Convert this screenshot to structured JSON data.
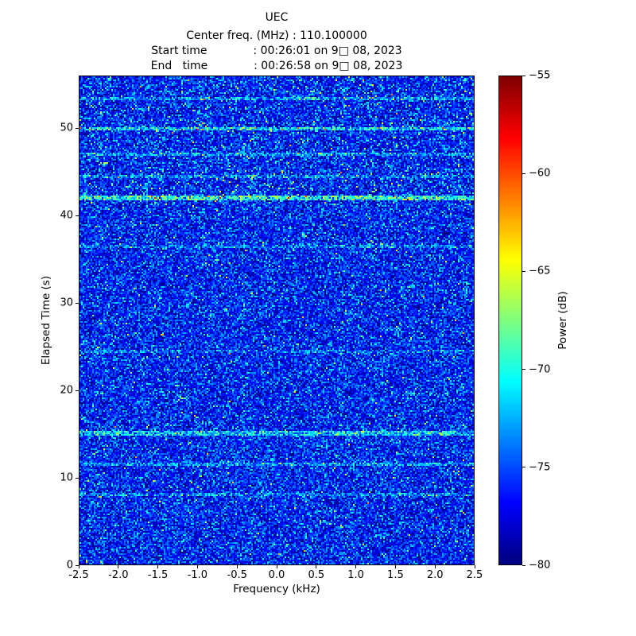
{
  "chart_data": {
    "type": "heatmap",
    "title": "UEC",
    "subtitle_lines": [
      "Center freq. (MHz) : 110.100000",
      "Start time             : 00:26:01 on 9□ 08, 2023",
      "End   time             : 00:26:58 on 9□ 08, 2023"
    ],
    "xlabel": "Frequency (kHz)",
    "ylabel": "Elapsed Time (s)",
    "xlim": [
      -2.5,
      2.5
    ],
    "ylim": [
      0,
      56
    ],
    "xticks": [
      -2.5,
      -2.0,
      -1.5,
      -1.0,
      -0.5,
      0.0,
      0.5,
      1.0,
      1.5,
      2.0,
      2.5
    ],
    "xtick_labels": [
      "-2.5",
      "-2.0",
      "-1.5",
      "-1.0",
      "-0.5",
      "0.0",
      "0.5",
      "1.0",
      "1.5",
      "2.0",
      "2.5"
    ],
    "yticks": [
      0,
      10,
      20,
      30,
      40,
      50
    ],
    "ytick_labels": [
      "0",
      "10",
      "20",
      "30",
      "40",
      "50"
    ],
    "grid": false,
    "colorbar": {
      "label": "Power (dB)",
      "colormap": "jet",
      "min": -80,
      "max": -55,
      "ticks": [
        -55,
        -60,
        -65,
        -70,
        -75,
        -80
      ],
      "tick_labels": [
        "−55",
        "−60",
        "−65",
        "−70",
        "−75",
        "−80"
      ]
    },
    "heatmap": {
      "description": "wideband noise floor around -76 dB with brighter horizontal interference streaks",
      "cols": 248,
      "rows": 307,
      "seed": 42,
      "mean_db": -76.2,
      "std_db": 2.4,
      "speck_prob": 0.02,
      "upper_region": {
        "t_min": 42,
        "extra_speck_prob": 0.03
      },
      "streaks": [
        {
          "t": 53.5,
          "boost": 3.0,
          "halfwidth": 0.2
        },
        {
          "t": 50.0,
          "boost": 5.0,
          "halfwidth": 0.25
        },
        {
          "t": 47.0,
          "boost": 3.0,
          "halfwidth": 0.2
        },
        {
          "t": 44.5,
          "boost": 3.0,
          "halfwidth": 0.2
        },
        {
          "t": 42.0,
          "boost": 7.0,
          "halfwidth": 0.3
        },
        {
          "t": 36.5,
          "boost": 2.5,
          "halfwidth": 0.2
        },
        {
          "t": 24.5,
          "boost": 2.0,
          "halfwidth": 0.2
        },
        {
          "t": 15.0,
          "boost": 5.0,
          "halfwidth": 0.25
        },
        {
          "t": 11.5,
          "boost": 3.0,
          "halfwidth": 0.2
        },
        {
          "t": 8.0,
          "boost": 2.5,
          "halfwidth": 0.2
        }
      ]
    }
  }
}
